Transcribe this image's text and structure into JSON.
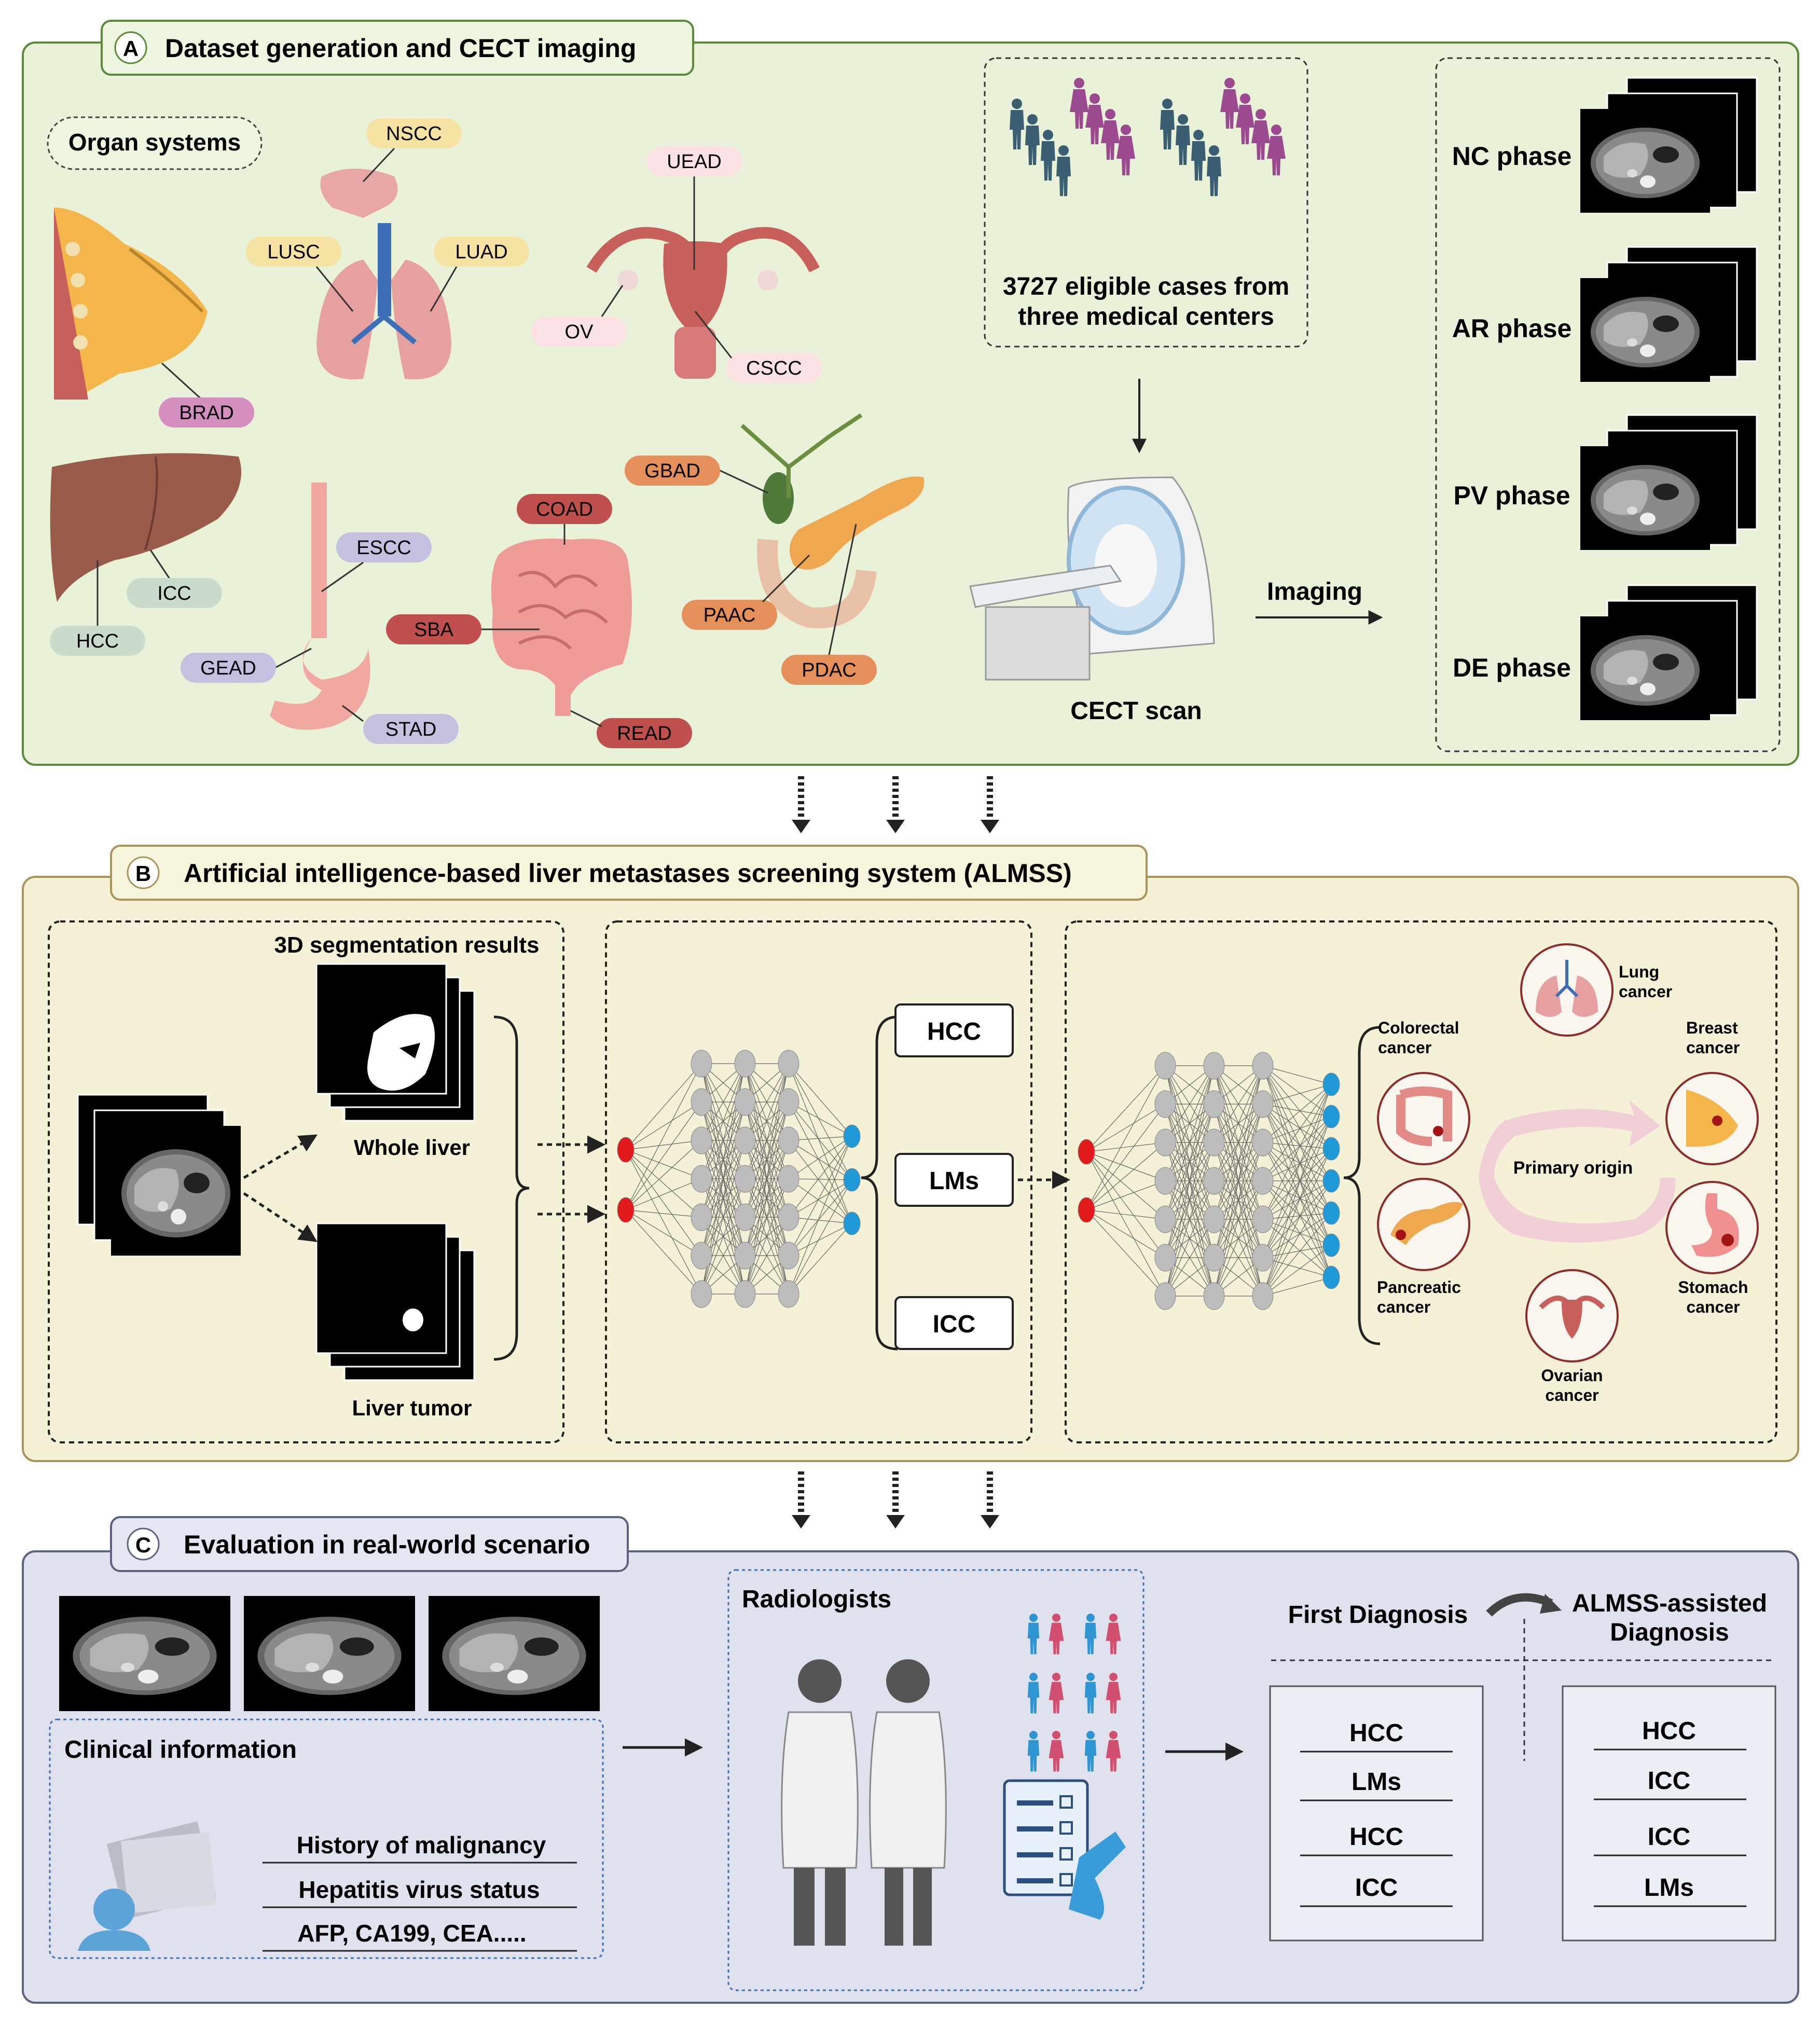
{
  "panel_a": {
    "letter": "A",
    "title": "Dataset generation and CECT imaging",
    "organ_systems_label": "Organ systems",
    "tags": {
      "nscc": "NSCC",
      "lusc": "LUSC",
      "luad": "LUAD",
      "uead": "UEAD",
      "ov": "OV",
      "cscc": "CSCC",
      "brad": "BRAD",
      "icc": "ICC",
      "hcc": "HCC",
      "escc": "ESCC",
      "gead": "GEAD",
      "stad": "STAD",
      "coad": "COAD",
      "sba": "SBA",
      "read": "READ",
      "gbad": "GBAD",
      "paac": "PAAC",
      "pdac": "PDAC"
    },
    "cases_line1": "3727 eligible cases from",
    "cases_line2": "three medical centers",
    "scanner_label": "CECT scan",
    "imaging_label": "Imaging",
    "phases": [
      "NC phase",
      "AR phase",
      "PV phase",
      "DE phase"
    ]
  },
  "panel_b": {
    "letter": "B",
    "title": "Artificial intelligence-based liver metastases screening system (ALMSS)",
    "seg_title": "3D segmentation results",
    "whole_liver": "Whole liver",
    "liver_tumor": "Liver tumor",
    "outputs": [
      "HCC",
      "LMs",
      "ICC"
    ],
    "primary_origin": "Primary origin",
    "origins": {
      "colorectal_1": "Colorectal",
      "colorectal_2": "cancer",
      "lung_1": "Lung",
      "lung_2": "cancer",
      "breast_1": "Breast",
      "breast_2": "cancer",
      "pancreatic_1": "Pancreatic",
      "pancreatic_2": "cancer",
      "stomach_1": "Stomach",
      "stomach_2": "cancer",
      "ovarian_1": "Ovarian",
      "ovarian_2": "cancer"
    }
  },
  "panel_c": {
    "letter": "C",
    "title": "Evaluation in real-world scenario",
    "clinical_title": "Clinical information",
    "clinical_items": [
      "History of malignancy",
      "Hepatitis virus status",
      "AFP, CA199, CEA....."
    ],
    "radiologists_label": "Radiologists",
    "first_diagnosis": "First Diagnosis",
    "assisted_1": "ALMSS-assisted",
    "assisted_2": "Diagnosis",
    "first_list": [
      "HCC",
      "LMs",
      "HCC",
      "ICC"
    ],
    "assisted_list": [
      "HCC",
      "ICC",
      "ICC",
      "LMs"
    ]
  },
  "colors": {
    "panel_a_bg": "#e9f2d8",
    "panel_a_border": "#5a8a3a",
    "panel_b_bg": "#f4f1d6",
    "panel_b_border": "#a8955a",
    "panel_c_bg": "#dfe1ee",
    "panel_c_border": "#5d6280",
    "male_figure": "#3a5f73",
    "female_figure": "#9c4a8f",
    "input_node": "#e31a1c",
    "output_node": "#1f9ad6",
    "hidden_node": "#bdbdbd"
  }
}
